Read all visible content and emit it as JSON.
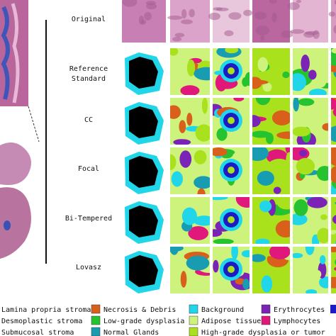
{
  "rows": [
    "Original",
    "Reference\nStandard",
    "CC",
    "Focal",
    "Bi-Tempered",
    "Lovasz"
  ],
  "legend": [
    {
      "name": "Lamina propria stroma"
    },
    {
      "name": "Necrosis & Debris",
      "color": "#d8601a"
    },
    {
      "name": "Background",
      "color": "#22d6ea"
    },
    {
      "name": "Erythrocytes",
      "color": "#7a23b6"
    },
    {
      "name": "Desmoplastic stroma"
    },
    {
      "name": "Low-grade dysplasia",
      "color": "#27c22f"
    },
    {
      "name": "Adipose tissue",
      "color": "#cdf37c"
    },
    {
      "name": "Lymphocytes",
      "color": "#e0187c"
    },
    {
      "name": "Submucosal stroma"
    },
    {
      "name": "Normal Glands",
      "color": "#189cb2"
    },
    {
      "name": "High-grade dysplasia or tumor",
      "color": "#a9e21c"
    }
  ]
}
